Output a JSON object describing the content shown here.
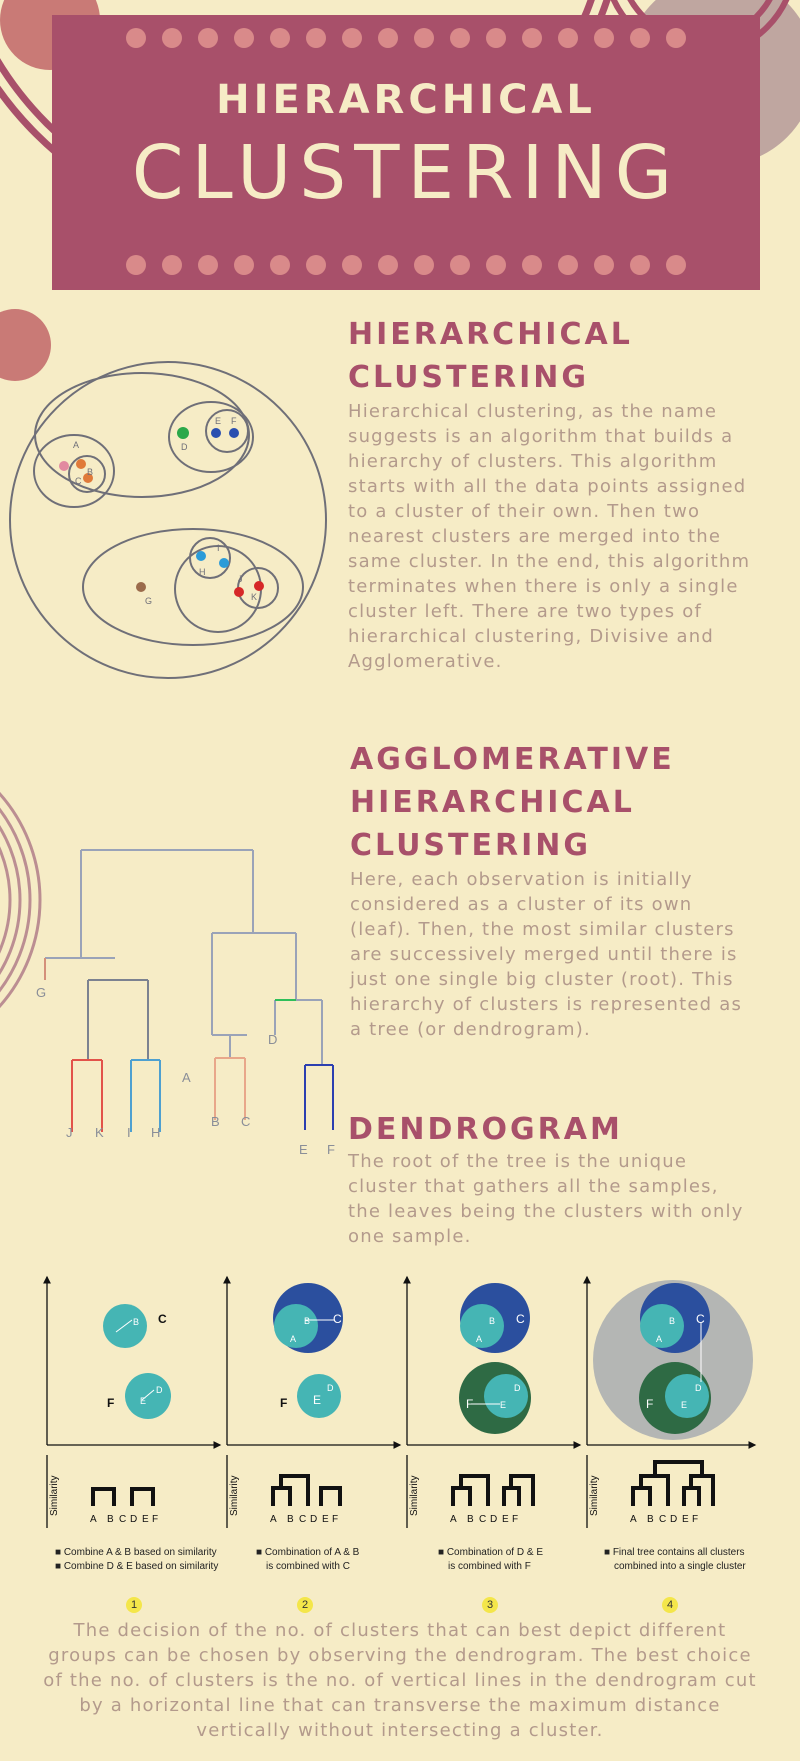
{
  "banner": {
    "title_small": "HIERARCHICAL",
    "title_large": "CLUSTERING"
  },
  "section1": {
    "heading": [
      "HIERARCHICAL",
      "CLUSTERING"
    ],
    "body": "Hierarchical clustering, as the name suggests is an algorithm that builds a hierarchy of clusters. This algorithm starts with all the data points assigned to a cluster of their own. Then two nearest clusters are merged into the same cluster. In the end, this algorithm terminates when there is only a single cluster left. There are two types of hierarchical clustering, Divisive and Agglomerative."
  },
  "section2": {
    "heading": [
      "AGGLOMERATIVE",
      "HIERARCHICAL",
      "CLUSTERING"
    ],
    "body": "Here, each observation is initially considered as a cluster of its own (leaf). Then, the most similar clusters are successively merged until there is just one single big cluster (root). This hierarchy of clusters is represented as a tree (or dendrogram)."
  },
  "section3": {
    "heading": [
      "DENDROGRAM"
    ],
    "body": "The root of the tree is the unique cluster that gathers all the samples, the leaves being the clusters with only one sample."
  },
  "cluster_labels": {
    "a": "A",
    "b": "B",
    "c": "C",
    "d": "D",
    "e": "E",
    "f": "F",
    "g": "G",
    "h": "H",
    "i": "I",
    "j": "J",
    "k": "K"
  },
  "dendro_labels": {
    "g": "G",
    "d": "D",
    "a": "A",
    "j": "J",
    "k": "K",
    "i": "I",
    "h": "H",
    "b": "B",
    "c": "C",
    "e": "E",
    "f": "F"
  },
  "steps": {
    "similarity": "Similarity",
    "leaves": [
      "A",
      "B",
      "C",
      "D",
      "E",
      "F"
    ],
    "pts": {
      "a": "A",
      "b": "B",
      "c": "C",
      "d": "D",
      "e": "E",
      "f": "F"
    },
    "captions": [
      [
        "Combine A & B based on similarity",
        "Combine D & E based on similarity"
      ],
      [
        "Combination of A & B",
        "is combined with C"
      ],
      [
        "Combination of D & E",
        "is combined with F"
      ],
      [
        "Final tree contains all clusters",
        "combined into a single cluster"
      ]
    ],
    "numbers": [
      "1",
      "2",
      "3",
      "4"
    ]
  },
  "final": {
    "body": "The decision of the no. of clusters that can best depict different groups can be chosen by observing the dendrogram. The best choice of the no. of clusters is the no. of vertical lines in the dendrogram cut by a horizontal line that can transverse the maximum distance vertically without intersecting a cluster."
  },
  "colors": {
    "banner": "#a8506a",
    "background": "#f6ecc6",
    "heading": "#a8506a",
    "body_text": "#b39a8c",
    "teal": "#45b5b4",
    "blue": "#2b4f9e",
    "green": "#2e6a44",
    "grey": "#b4b6b4"
  }
}
